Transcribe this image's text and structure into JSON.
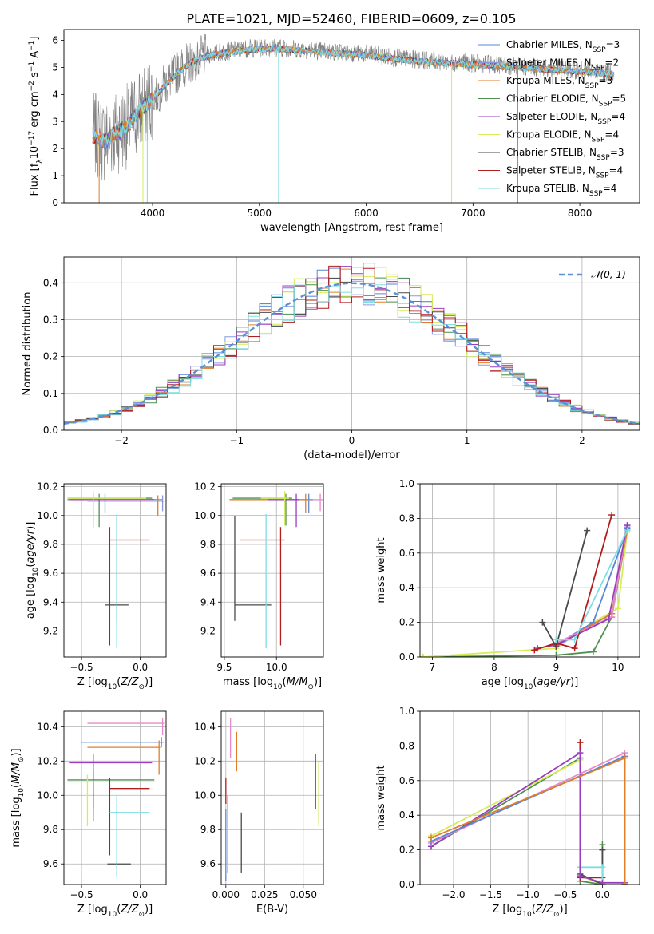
{
  "figure_title": "PLATE=1021, MJD=52460, FIBERID=0609, z=0.105",
  "colors": {
    "Chabrier MILES": "#5a86d6",
    "Salpeter MILES": "#8a98e0",
    "Kroupa MILES": "#e07e2a",
    "Chabrier ELODIE": "#4f8f4f",
    "Salpeter ELODIE": "#9a3cc0",
    "Kroupa ELODIE": "#d6ec5a",
    "Chabrier STELIB": "#4a4a4a",
    "Salpeter STELIB": "#b21d1d",
    "Kroupa STELIB": "#7edde0",
    "pink": "#e88ac8",
    "data": "#808080",
    "gauss": "#5b8fd6"
  },
  "chart_data": [
    {
      "id": "spectrum",
      "type": "line",
      "title": "PLATE=1021, MJD=52460, FIBERID=0609, z=0.105",
      "xlabel": "wavelength [Angstrom, rest frame]",
      "ylabel_html": "Flux [f<tspan baseline-shift='sub' font-size='9'>λ</tspan>10<tspan baseline-shift='super' font-size='9'>−17</tspan> erg cm<tspan baseline-shift='super' font-size='9'>−2</tspan> s<tspan baseline-shift='super' font-size='9'>−1</tspan> A<tspan baseline-shift='super' font-size='9'>−1</tspan>]",
      "xlim": [
        3170,
        8560
      ],
      "ylim": [
        0,
        6.4
      ],
      "xticks": [
        4000,
        5000,
        6000,
        7000,
        8000
      ],
      "yticks": [
        0,
        1,
        2,
        3,
        4,
        5,
        6
      ],
      "continuum": {
        "x": [
          3450,
          3550,
          3650,
          3750,
          3850,
          3950,
          4050,
          4150,
          4250,
          4350,
          4450,
          4550,
          4700,
          4900,
          5100,
          5300,
          5600,
          6000,
          6400,
          6800,
          7200,
          7600,
          8000,
          8300
        ],
        "y": [
          2.5,
          2.3,
          2.6,
          2.8,
          3.3,
          3.7,
          4.1,
          4.5,
          4.9,
          5.2,
          5.4,
          5.5,
          5.6,
          5.7,
          5.75,
          5.7,
          5.6,
          5.5,
          5.3,
          5.2,
          5.1,
          5.0,
          4.9,
          4.8
        ]
      },
      "legend": [
        {
          "key": "Chabrier MILES",
          "label": "Chabrier MILES, N",
          "sub": "SSP",
          "tail": "=3"
        },
        {
          "key": "Salpeter MILES",
          "label": "Salpeter MILES, N",
          "sub": "SSP",
          "tail": "=2"
        },
        {
          "key": "Kroupa MILES",
          "label": "Kroupa MILES, N",
          "sub": "SSP",
          "tail": "=3"
        },
        {
          "key": "Chabrier ELODIE",
          "label": "Chabrier ELODIE, N",
          "sub": "SSP",
          "tail": "=5"
        },
        {
          "key": "Salpeter ELODIE",
          "label": "Salpeter ELODIE, N",
          "sub": "SSP",
          "tail": "=4"
        },
        {
          "key": "Kroupa ELODIE",
          "label": "Kroupa ELODIE, N",
          "sub": "SSP",
          "tail": "=4"
        },
        {
          "key": "Chabrier STELIB",
          "label": "Chabrier STELIB, N",
          "sub": "SSP",
          "tail": "=3"
        },
        {
          "key": "Salpeter STELIB",
          "label": "Salpeter STELIB, N",
          "sub": "SSP",
          "tail": "=4"
        },
        {
          "key": "Kroupa STELIB",
          "label": "Kroupa STELIB, N",
          "sub": "SSP",
          "tail": "=4"
        }
      ],
      "drops": [
        {
          "key": "Kroupa MILES",
          "x": 3500
        },
        {
          "key": "Kroupa ELODIE",
          "x": 3910
        },
        {
          "key": "Kroupa STELIB",
          "x": 3950
        },
        {
          "key": "Kroupa STELIB",
          "x": 5180
        },
        {
          "key": "Kroupa ELODIE",
          "x": 6800
        },
        {
          "key": "Kroupa MILES",
          "x": 7420
        }
      ]
    },
    {
      "id": "residuals",
      "type": "bar",
      "xlabel": "(data-model)/error",
      "ylabel": "Normed distribution",
      "xlim": [
        -2.5,
        2.5
      ],
      "ylim": [
        0,
        0.47
      ],
      "xticks": [
        -2,
        -1,
        0,
        1,
        2
      ],
      "yticks": [
        0.0,
        0.1,
        0.2,
        0.3,
        0.4
      ],
      "gauss_label": "𝒩(0, 1)",
      "bin_width": 0.1,
      "bins_start": -2.5
    },
    {
      "id": "age-z",
      "type": "scatter",
      "xlabel_html": "Z [log<tspan baseline-shift='sub' font-size='9'>10</tspan>(<tspan font-style='italic'>Z/Z</tspan><tspan baseline-shift='sub' font-size='9'>⊙</tspan>)]",
      "ylabel_html": "age  [log<tspan baseline-shift='sub' font-size='9'>10</tspan>(<tspan font-style='italic'>age/yr</tspan>)]",
      "xlim": [
        -0.65,
        0.22
      ],
      "ylim": [
        9.02,
        10.22
      ],
      "xticks": [
        -0.5,
        0.0
      ],
      "yticks": [
        9.2,
        9.4,
        9.6,
        9.8,
        10.0,
        10.2
      ],
      "points": [
        {
          "key": "Chabrier MILES",
          "x": -0.3,
          "y": 10.11,
          "xl": -0.62,
          "xh": 0.19,
          "yl": 10.02,
          "yh": 10.15
        },
        {
          "key": "Salpeter MILES",
          "x": 0.19,
          "y": 10.1,
          "xl": 0.17,
          "xh": 0.21,
          "yl": 10.03,
          "yh": 10.14
        },
        {
          "key": "Kroupa MILES",
          "x": 0.15,
          "y": 10.1,
          "xl": -0.45,
          "xh": 0.19,
          "yl": 10.0,
          "yh": 10.14
        },
        {
          "key": "Chabrier ELODIE",
          "x": -0.35,
          "y": 10.12,
          "xl": -0.62,
          "xh": 0.1,
          "yl": 9.92,
          "yh": 10.15
        },
        {
          "key": "Salpeter ELODIE",
          "x": -0.4,
          "y": 10.11,
          "xl": -0.6,
          "xh": 0.12,
          "yl": 9.92,
          "yh": 10.15
        },
        {
          "key": "Kroupa ELODIE",
          "x": -0.4,
          "y": 10.12,
          "xl": -0.62,
          "xh": 0.05,
          "yl": 9.92,
          "yh": 10.17
        },
        {
          "key": "Chabrier STELIB",
          "x": -0.2,
          "y": 9.38,
          "xl": -0.3,
          "xh": -0.1,
          "yl": 9.27,
          "yh": 10.0
        },
        {
          "key": "Salpeter STELIB",
          "x": -0.26,
          "y": 9.83,
          "xl": -0.26,
          "xh": 0.08,
          "yl": 9.1,
          "yh": 9.92
        },
        {
          "key": "Kroupa STELIB",
          "x": -0.2,
          "y": 10.0,
          "xl": -0.26,
          "xh": 0.08,
          "yl": 9.08,
          "yh": 10.01
        }
      ]
    },
    {
      "id": "age-mass",
      "type": "scatter",
      "xlabel_html": "mass [log<tspan baseline-shift='sub' font-size='9'>10</tspan>(<tspan font-style='italic'>M/M</tspan><tspan baseline-shift='sub' font-size='9'>⊙</tspan>)]",
      "xlim": [
        9.47,
        10.45
      ],
      "ylim": [
        9.02,
        10.22
      ],
      "xticks": [
        9.5,
        10.0
      ],
      "yticks": [
        9.2,
        9.4,
        9.6,
        9.8,
        10.0,
        10.2
      ],
      "points": [
        {
          "key": "Chabrier MILES",
          "x": 10.31,
          "y": 10.11,
          "xl": 9.55,
          "xh": 10.35,
          "yl": 10.02,
          "yh": 10.15
        },
        {
          "key": "pink",
          "x": 10.42,
          "y": 10.11,
          "xl": 10.35,
          "xh": 10.45,
          "yl": 10.03,
          "yh": 10.15
        },
        {
          "key": "Kroupa MILES",
          "x": 10.28,
          "y": 10.11,
          "xl": 9.55,
          "xh": 10.32,
          "yl": 10.02,
          "yh": 10.15
        },
        {
          "key": "Chabrier ELODIE",
          "x": 10.09,
          "y": 10.12,
          "xl": 9.58,
          "xh": 10.15,
          "yl": 9.93,
          "yh": 10.15
        },
        {
          "key": "Salpeter ELODIE",
          "x": 10.19,
          "y": 10.11,
          "xl": 9.92,
          "xh": 10.22,
          "yl": 9.92,
          "yh": 10.15
        },
        {
          "key": "Kroupa ELODIE",
          "x": 10.08,
          "y": 10.12,
          "xl": 9.85,
          "xh": 10.12,
          "yl": 9.93,
          "yh": 10.17
        },
        {
          "key": "Chabrier STELIB",
          "x": 9.6,
          "y": 9.38,
          "xl": 9.6,
          "xh": 9.95,
          "yl": 9.27,
          "yh": 10.0
        },
        {
          "key": "Salpeter STELIB",
          "x": 10.04,
          "y": 9.83,
          "xl": 9.65,
          "xh": 10.08,
          "yl": 9.1,
          "yh": 9.92
        },
        {
          "key": "Kroupa STELIB",
          "x": 9.9,
          "y": 10.0,
          "xl": 9.55,
          "xh": 9.95,
          "yl": 9.08,
          "yh": 10.01
        }
      ]
    },
    {
      "id": "mw-age",
      "type": "line",
      "xlabel_html": "age  [log<tspan baseline-shift='sub' font-size='9'>10</tspan>(<tspan font-style='italic'>age/yr</tspan>)]",
      "ylabel": "mass weight",
      "xlim": [
        6.8,
        10.35
      ],
      "ylim": [
        0,
        1.0
      ],
      "xticks": [
        7,
        8,
        9,
        10
      ],
      "yticks": [
        0.0,
        0.2,
        0.4,
        0.6,
        0.8,
        1.0
      ],
      "series": [
        {
          "key": "Chabrier ELODIE",
          "x": [
            6.85,
            9.0,
            9.6,
            9.9,
            10.15
          ],
          "y": [
            0.0,
            0.01,
            0.03,
            0.23,
            0.73
          ]
        },
        {
          "key": "Kroupa ELODIE",
          "x": [
            6.85,
            9.0,
            9.6,
            10.0,
            10.15
          ],
          "y": [
            0.0,
            0.05,
            0.2,
            0.28,
            0.72
          ]
        },
        {
          "key": "Chabrier MILES",
          "x": [
            9.0,
            9.6,
            10.15
          ],
          "y": [
            0.07,
            0.2,
            0.74
          ]
        },
        {
          "key": "Salpeter MILES",
          "x": [
            9.0,
            9.9,
            10.15
          ],
          "y": [
            0.06,
            0.25,
            0.75
          ]
        },
        {
          "key": "Kroupa MILES",
          "x": [
            9.0,
            9.9,
            10.15
          ],
          "y": [
            0.07,
            0.25,
            0.73
          ]
        },
        {
          "key": "pink",
          "x": [
            9.0,
            9.9,
            10.15
          ],
          "y": [
            0.08,
            0.23,
            0.76
          ]
        },
        {
          "key": "Salpeter ELODIE",
          "x": [
            8.7,
            9.0,
            9.85,
            10.15
          ],
          "y": [
            0.05,
            0.07,
            0.22,
            0.76
          ]
        },
        {
          "key": "Chabrier STELIB",
          "x": [
            8.78,
            9.0,
            9.5
          ],
          "y": [
            0.2,
            0.06,
            0.73
          ]
        },
        {
          "key": "Salpeter STELIB",
          "x": [
            8.65,
            9.0,
            9.3,
            9.9
          ],
          "y": [
            0.04,
            0.08,
            0.05,
            0.82
          ]
        },
        {
          "key": "Kroupa STELIB",
          "x": [
            9.0,
            9.3,
            10.15
          ],
          "y": [
            0.1,
            0.1,
            0.73
          ]
        }
      ]
    },
    {
      "id": "mass-z",
      "type": "scatter",
      "xlabel_html": "Z [log<tspan baseline-shift='sub' font-size='9'>10</tspan>(<tspan font-style='italic'>Z/Z</tspan><tspan baseline-shift='sub' font-size='9'>⊙</tspan>)]",
      "ylabel_html": "mass [log<tspan baseline-shift='sub' font-size='9'>10</tspan>(<tspan font-style='italic'>M/M</tspan><tspan baseline-shift='sub' font-size='9'>⊙</tspan>)]",
      "xlim": [
        -0.65,
        0.22
      ],
      "ylim": [
        9.48,
        10.49
      ],
      "xticks": [
        -0.5,
        0.0
      ],
      "yticks": [
        9.6,
        9.8,
        10.0,
        10.2,
        10.4
      ],
      "points": [
        {
          "key": "Chabrier MILES",
          "x": 0.18,
          "y": 10.31,
          "xl": -0.5,
          "xh": 0.2,
          "yl": 10.28,
          "yh": 10.34
        },
        {
          "key": "pink",
          "x": 0.19,
          "y": 10.42,
          "xl": -0.45,
          "xh": 0.21,
          "yl": 10.35,
          "yh": 10.45
        },
        {
          "key": "Kroupa MILES",
          "x": 0.16,
          "y": 10.28,
          "xl": -0.45,
          "xh": 0.17,
          "yl": 10.12,
          "yh": 10.32
        },
        {
          "key": "Chabrier ELODIE",
          "x": -0.4,
          "y": 10.09,
          "xl": -0.62,
          "xh": 0.12,
          "yl": 9.85,
          "yh": 10.15
        },
        {
          "key": "Salpeter ELODIE",
          "x": -0.4,
          "y": 10.19,
          "xl": -0.6,
          "xh": 0.1,
          "yl": 9.92,
          "yh": 10.24
        },
        {
          "key": "Kroupa ELODIE",
          "x": -0.45,
          "y": 10.08,
          "xl": -0.62,
          "xh": 0.12,
          "yl": 9.82,
          "yh": 10.12
        },
        {
          "key": "Chabrier STELIB",
          "x": -0.2,
          "y": 9.6,
          "xl": -0.28,
          "xh": -0.08,
          "yl": 9.6,
          "yh": 9.62
        },
        {
          "key": "Salpeter STELIB",
          "x": -0.26,
          "y": 10.04,
          "xl": -0.26,
          "xh": 0.08,
          "yl": 9.65,
          "yh": 10.1
        },
        {
          "key": "Kroupa STELIB",
          "x": -0.2,
          "y": 9.9,
          "xl": -0.26,
          "xh": 0.08,
          "yl": 9.52,
          "yh": 10.0
        }
      ]
    },
    {
      "id": "mass-ebv",
      "type": "scatter",
      "xlabel": "E(B-V)",
      "xlim": [
        -0.003,
        0.063
      ],
      "ylim": [
        9.48,
        10.49
      ],
      "xticks": [
        0.0,
        0.025,
        0.05
      ],
      "xticklabels": [
        "0.000",
        "0.025",
        "0.050"
      ],
      "yticks": [
        9.6,
        9.8,
        10.0,
        10.2,
        10.4
      ],
      "points": [
        {
          "key": "Chabrier MILES",
          "x": 0.0,
          "y": 9.7,
          "yl": 9.5,
          "yh": 9.92
        },
        {
          "key": "Kroupa STELIB",
          "x": 0.001,
          "y": 9.8,
          "yl": 9.55,
          "yh": 10.0
        },
        {
          "key": "Salpeter STELIB",
          "x": 0.0,
          "y": 10.05,
          "yl": 9.95,
          "yh": 10.1
        },
        {
          "key": "pink",
          "x": 0.003,
          "y": 10.35,
          "yl": 10.22,
          "yh": 10.45
        },
        {
          "key": "Kroupa MILES",
          "x": 0.007,
          "y": 10.2,
          "yl": 10.14,
          "yh": 10.37
        },
        {
          "key": "Chabrier STELIB",
          "x": 0.01,
          "y": 9.7,
          "yl": 9.55,
          "yh": 9.9
        },
        {
          "key": "Salpeter ELODIE",
          "x": 0.058,
          "y": 10.1,
          "yl": 9.92,
          "yh": 10.24
        },
        {
          "key": "Chabrier ELODIE",
          "x": 0.06,
          "y": 10.05,
          "yl": 9.85,
          "yh": 10.2
        },
        {
          "key": "Kroupa ELODIE",
          "x": 0.06,
          "y": 10.0,
          "yl": 9.82,
          "yh": 10.2
        }
      ]
    },
    {
      "id": "mw-z",
      "type": "line",
      "xlabel_html": "Z [log<tspan baseline-shift='sub' font-size='9'>10</tspan>(<tspan font-style='italic'>Z/Z</tspan><tspan baseline-shift='sub' font-size='9'>⊙</tspan>)]",
      "ylabel": "mass weight",
      "xlim": [
        -2.45,
        0.5
      ],
      "ylim": [
        0,
        1.0
      ],
      "xticks": [
        -2.0,
        -1.5,
        -1.0,
        -0.5,
        0.0
      ],
      "yticks": [
        0.0,
        0.2,
        0.4,
        0.6,
        0.8,
        1.0
      ],
      "series": [
        {
          "key": "Chabrier ELODIE",
          "x": [
            -2.3,
            -0.3,
            -0.3,
            0.0,
            0.0
          ],
          "y": [
            0.22,
            0.73,
            0.02,
            0.0,
            0.23
          ]
        },
        {
          "key": "Kroupa ELODIE",
          "x": [
            -2.3,
            -0.3,
            -0.3,
            0.0,
            0.0
          ],
          "y": [
            0.28,
            0.72,
            0.05,
            0.0,
            0.2
          ]
        },
        {
          "key": "Chabrier STELIB",
          "x": [
            -0.3,
            -0.3,
            0.0,
            0.0
          ],
          "y": [
            0.73,
            0.06,
            0.0,
            0.2
          ]
        },
        {
          "key": "Salpeter STELIB",
          "x": [
            -0.3,
            -0.3,
            0.0,
            0.0
          ],
          "y": [
            0.82,
            0.04,
            0.04,
            0.01
          ]
        },
        {
          "key": "Kroupa STELIB",
          "x": [
            -0.3,
            -0.3,
            0.0,
            0.0
          ],
          "y": [
            0.73,
            0.1,
            0.1,
            0.0
          ]
        },
        {
          "key": "Salpeter ELODIE",
          "x": [
            -2.3,
            -0.3,
            -0.3,
            0.0,
            0.3,
            0.3
          ],
          "y": [
            0.22,
            0.76,
            0.05,
            0.01,
            0.01,
            0.0
          ]
        },
        {
          "key": "pink",
          "x": [
            -2.3,
            0.3,
            0.3
          ],
          "y": [
            0.24,
            0.76,
            0.0
          ]
        },
        {
          "key": "Chabrier MILES",
          "x": [
            -2.3,
            0.3,
            0.3
          ],
          "y": [
            0.25,
            0.74,
            0.0
          ]
        },
        {
          "key": "Kroupa MILES",
          "x": [
            -2.3,
            0.3,
            0.3
          ],
          "y": [
            0.27,
            0.73,
            0.0
          ]
        }
      ]
    }
  ]
}
